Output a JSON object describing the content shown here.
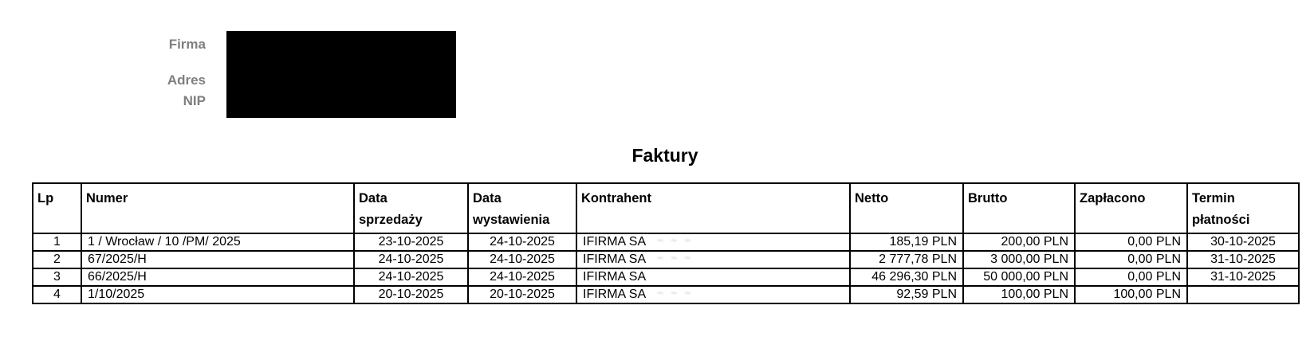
{
  "colors": {
    "background": "#ffffff",
    "text": "#000000",
    "table_border": "#000000",
    "header_label_gray": "#7f7f7f",
    "redaction_box": "#000000",
    "blur_marks_gray": "#b4b4b4"
  },
  "company_header": {
    "firma_label": "Firma",
    "adres_label": "Adres",
    "nip_label": "NIP",
    "values_redacted": true
  },
  "document": {
    "title": "Faktury"
  },
  "table": {
    "columns": [
      {
        "key": "lp",
        "label": "Lp",
        "lines": [
          "Lp"
        ]
      },
      {
        "key": "numer",
        "label": "Numer",
        "lines": [
          "Numer"
        ]
      },
      {
        "key": "data_sprzedazy",
        "label": "Data sprzedaży",
        "lines": [
          "Data",
          "sprzedaży"
        ]
      },
      {
        "key": "data_wystawienia",
        "label": "Data wystawienia",
        "lines": [
          "Data",
          "wystawienia"
        ]
      },
      {
        "key": "kontrahent",
        "label": "Kontrahent",
        "lines": [
          "Kontrahent"
        ]
      },
      {
        "key": "netto",
        "label": "Netto",
        "lines": [
          "Netto"
        ]
      },
      {
        "key": "brutto",
        "label": "Brutto",
        "lines": [
          "Brutto"
        ]
      },
      {
        "key": "zaplacono",
        "label": "Zapłacono",
        "lines": [
          "Zapłacono"
        ]
      },
      {
        "key": "termin_platnosci",
        "label": "Termin płatności",
        "lines": [
          "Termin",
          "płatności"
        ]
      }
    ],
    "rows": [
      {
        "lp": "1",
        "numer": "1 / Wrocław / 10 /PM/ 2025",
        "data_sprzedazy": "23-10-2025",
        "data_wystawienia": "24-10-2025",
        "kontrahent": "IFIRMA SA",
        "kontrahent_suffix_redacted": true,
        "netto": "185,19 PLN",
        "brutto": "200,00 PLN",
        "zaplacono": "0,00 PLN",
        "termin_platnosci": "30-10-2025"
      },
      {
        "lp": "2",
        "numer": "67/2025/H",
        "data_sprzedazy": "24-10-2025",
        "data_wystawienia": "24-10-2025",
        "kontrahent": "IFIRMA SA",
        "kontrahent_suffix_redacted": true,
        "netto": "2 777,78 PLN",
        "brutto": "3 000,00 PLN",
        "zaplacono": "0,00 PLN",
        "termin_platnosci": "31-10-2025"
      },
      {
        "lp": "3",
        "numer": "66/2025/H",
        "data_sprzedazy": "24-10-2025",
        "data_wystawienia": "24-10-2025",
        "kontrahent": "IFIRMA SA",
        "kontrahent_suffix_redacted": false,
        "netto": "46 296,30 PLN",
        "brutto": "50 000,00 PLN",
        "zaplacono": "0,00 PLN",
        "termin_platnosci": "31-10-2025"
      },
      {
        "lp": "4",
        "numer": "1/10/2025",
        "data_sprzedazy": "20-10-2025",
        "data_wystawienia": "20-10-2025",
        "kontrahent": "IFIRMA SA",
        "kontrahent_suffix_redacted": true,
        "netto": "92,59 PLN",
        "brutto": "100,00 PLN",
        "zaplacono": "100,00 PLN",
        "termin_platnosci": ""
      }
    ]
  }
}
